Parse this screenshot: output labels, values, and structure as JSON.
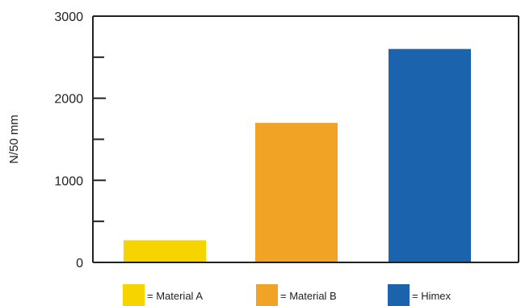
{
  "chart_data": {
    "type": "bar",
    "categories": [
      "Material A",
      "Material B",
      "Himex"
    ],
    "values": [
      270,
      1700,
      2600
    ],
    "colors": [
      "#f5d400",
      "#f0a325",
      "#1c63ad"
    ],
    "ylabel": "N/50 mm",
    "ylim": [
      0,
      3000
    ],
    "yticks": [
      0,
      1000,
      2000,
      3000
    ],
    "minor_yticks": [
      500,
      1500,
      2500
    ],
    "grid": false,
    "legend": {
      "placement": "bottom",
      "entries": [
        "= Material A",
        "= Material B",
        "= Himex"
      ]
    }
  }
}
